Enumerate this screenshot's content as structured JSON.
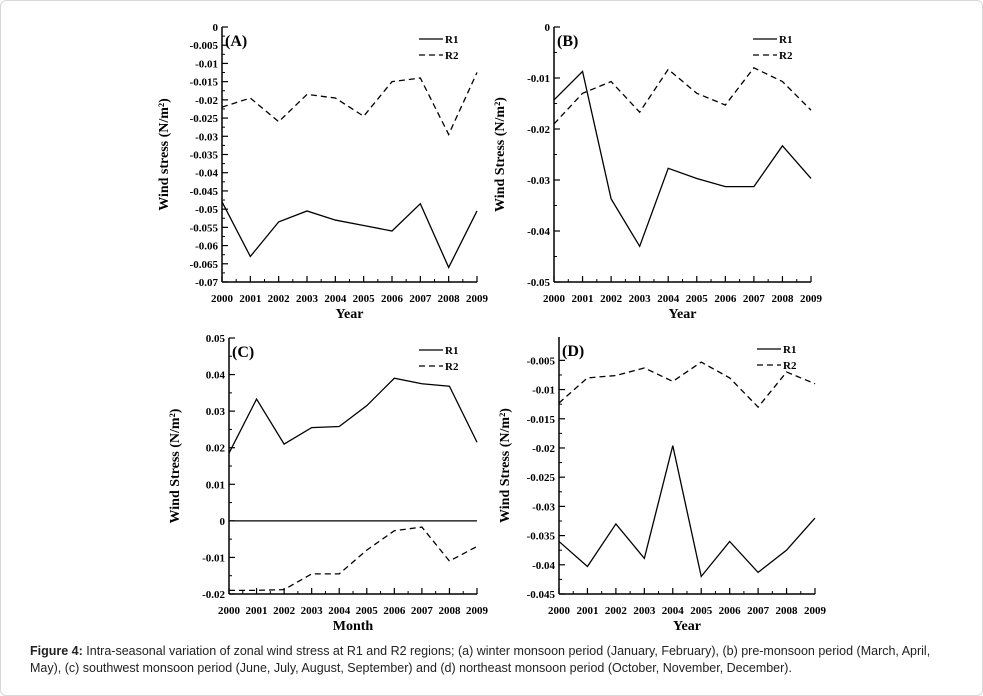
{
  "caption": {
    "label": "Figure 4:",
    "text": " Intra-seasonal variation of zonal wind stress at R1 and R2 regions; (a) winter monsoon period (January, February), (b) pre-monsoon period (March, April, May), (c) southwest monsoon period (June, July, August, September) and (d) northeast monsoon period (October, November, December)."
  },
  "chart_data": [
    {
      "type": "line",
      "panel": "(A)",
      "x": [
        2000,
        2001,
        2002,
        2003,
        2004,
        2005,
        2006,
        2007,
        2008,
        2009
      ],
      "xlabel": "Year",
      "ylabel": "Wind stress (N/m²)",
      "ylim": [
        -0.07,
        0
      ],
      "yticks": [
        "0",
        "-0.005",
        "-0.01",
        "-0.015",
        "-0.02",
        "-0.025",
        "-0.03",
        "-0.035",
        "-0.04",
        "-0.045",
        "-0.05",
        "-0.055",
        "-0.06",
        "-0.065",
        "-0.07"
      ],
      "legend": "top-right",
      "grid": false,
      "zero_line": false,
      "series": [
        {
          "name": "R1",
          "style": "solid",
          "values": [
            -0.048,
            -0.063,
            -0.0535,
            -0.0505,
            -0.053,
            -0.0545,
            -0.056,
            -0.0485,
            -0.066,
            -0.0505
          ]
        },
        {
          "name": "R2",
          "style": "dashed",
          "values": [
            -0.022,
            -0.0195,
            -0.026,
            -0.0185,
            -0.0195,
            -0.0245,
            -0.015,
            -0.014,
            -0.0295,
            -0.0125
          ]
        }
      ]
    },
    {
      "type": "line",
      "panel": "(B)",
      "x": [
        2000,
        2001,
        2002,
        2003,
        2004,
        2005,
        2006,
        2007,
        2008,
        2009
      ],
      "xlabel": "Year",
      "ylabel": "Wind Stress (N/m²)",
      "ylim": [
        -0.05,
        0
      ],
      "yticks": [
        "0",
        "-0.01",
        "-0.02",
        "-0.03",
        "-0.04",
        "-0.05"
      ],
      "legend": "top-right",
      "grid": false,
      "zero_line": false,
      "series": [
        {
          "name": "R1",
          "style": "solid",
          "values": [
            -0.0143,
            -0.0087,
            -0.0337,
            -0.043,
            -0.0277,
            -0.0297,
            -0.0313,
            -0.0313,
            -0.0233,
            -0.0297
          ]
        },
        {
          "name": "R2",
          "style": "dashed",
          "values": [
            -0.019,
            -0.013,
            -0.0107,
            -0.0167,
            -0.0083,
            -0.013,
            -0.0153,
            -0.008,
            -0.0107,
            -0.0163
          ]
        }
      ]
    },
    {
      "type": "line",
      "panel": "(C)",
      "x": [
        2000,
        2001,
        2002,
        2003,
        2004,
        2005,
        2006,
        2007,
        2008,
        2009
      ],
      "xlabel": "Month",
      "ylabel": "Wind Stress (N/m²)",
      "ylim": [
        -0.02,
        0.05
      ],
      "yticks": [
        "0.05",
        "0.04",
        "0.03",
        "0.02",
        "0.01",
        "0",
        "-0.01",
        "-0.02"
      ],
      "legend": "top-right",
      "grid": false,
      "zero_line": true,
      "series": [
        {
          "name": "R1",
          "style": "solid",
          "values": [
            0.0185,
            0.0333,
            0.021,
            0.0255,
            0.0258,
            0.0315,
            0.039,
            0.0375,
            0.0368,
            0.0215
          ]
        },
        {
          "name": "R2",
          "style": "dashed",
          "values": [
            -0.019,
            -0.019,
            -0.0188,
            -0.0145,
            -0.0145,
            -0.008,
            -0.0027,
            -0.0017,
            -0.011,
            -0.007
          ]
        }
      ]
    },
    {
      "type": "line",
      "panel": "(D)",
      "x": [
        2000,
        2001,
        2002,
        2003,
        2004,
        2005,
        2006,
        2007,
        2008,
        2009
      ],
      "xlabel": "Year",
      "ylabel": "Wind Stress (N/m²)",
      "ylim": [
        -0.045,
        -0.001
      ],
      "yticks": [
        "-0.005",
        "-0.01",
        "-0.015",
        "-0.02",
        "-0.025",
        "-0.03",
        "-0.035",
        "-0.04",
        "-0.045"
      ],
      "legend": "top-right",
      "grid": false,
      "zero_line": false,
      "series": [
        {
          "name": "R1",
          "style": "solid",
          "values": [
            -0.036,
            -0.0403,
            -0.033,
            -0.0389,
            -0.0196,
            -0.042,
            -0.036,
            -0.0413,
            -0.0375,
            -0.032
          ]
        },
        {
          "name": "R2",
          "style": "dashed",
          "values": [
            -0.0123,
            -0.008,
            -0.0076,
            -0.0063,
            -0.0086,
            -0.0053,
            -0.008,
            -0.013,
            -0.007,
            -0.009
          ]
        }
      ]
    }
  ]
}
